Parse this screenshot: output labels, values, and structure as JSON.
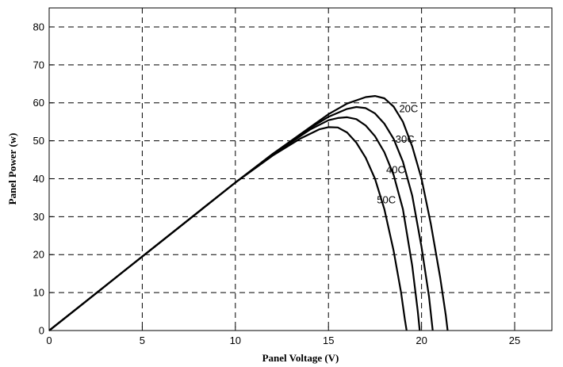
{
  "chart_data": {
    "type": "line",
    "title": "",
    "xlabel": "Panel Voltage (V)",
    "ylabel": "Panel Power (w)",
    "xlim": [
      0,
      27
    ],
    "ylim": [
      0,
      85
    ],
    "xticks": [
      0,
      5,
      10,
      15,
      20,
      25
    ],
    "yticks": [
      0,
      10,
      20,
      30,
      40,
      50,
      60,
      70,
      80
    ],
    "grid": true,
    "series": [
      {
        "name": "20C",
        "x": [
          0,
          2,
          4,
          6,
          8,
          10,
          12,
          14,
          15,
          16,
          17,
          17.5,
          18,
          18.5,
          19,
          19.5,
          20,
          20.5,
          21,
          21.3,
          21.4
        ],
        "y": [
          0,
          7.8,
          15.6,
          23.4,
          31.2,
          39.0,
          46.5,
          53.5,
          57.0,
          59.8,
          61.5,
          61.8,
          61.2,
          59.0,
          55.0,
          48.5,
          40.0,
          28.0,
          14.0,
          4.0,
          0
        ]
      },
      {
        "name": "30C",
        "x": [
          0,
          2,
          4,
          6,
          8,
          10,
          12,
          14,
          15,
          16,
          16.5,
          17,
          17.5,
          18,
          18.5,
          19,
          19.5,
          20,
          20.4,
          20.6
        ],
        "y": [
          0,
          7.8,
          15.6,
          23.4,
          31.2,
          39.0,
          46.5,
          53.3,
          56.3,
          58.4,
          58.9,
          58.6,
          57.2,
          54.5,
          50.5,
          44.5,
          35.5,
          22.0,
          9.0,
          0
        ]
      },
      {
        "name": "40C",
        "x": [
          0,
          2,
          4,
          6,
          8,
          10,
          12,
          14,
          15,
          15.5,
          16,
          16.5,
          17,
          17.5,
          18,
          18.5,
          19,
          19.5,
          19.8,
          19.9
        ],
        "y": [
          0,
          7.8,
          15.6,
          23.4,
          31.2,
          39.0,
          46.3,
          52.9,
          55.4,
          56.0,
          56.2,
          55.7,
          54.0,
          51.2,
          47.0,
          41.0,
          32.0,
          17.0,
          5.0,
          0
        ]
      },
      {
        "name": "50C",
        "x": [
          0,
          2,
          4,
          6,
          8,
          10,
          12,
          13.5,
          14.5,
          15,
          15.5,
          16,
          16.5,
          17,
          17.5,
          18,
          18.5,
          18.9,
          19.1,
          19.2
        ],
        "y": [
          0,
          7.8,
          15.6,
          23.4,
          31.2,
          39.0,
          46.1,
          50.6,
          53.0,
          53.6,
          53.5,
          52.2,
          49.5,
          45.5,
          40.0,
          32.0,
          21.0,
          10.0,
          3.0,
          0
        ]
      }
    ],
    "annotations": [
      {
        "text": "20C",
        "x": 18.8,
        "y": 57.5
      },
      {
        "text": "30C",
        "x": 18.6,
        "y": 49.5
      },
      {
        "text": "40C",
        "x": 18.1,
        "y": 41.5
      },
      {
        "text": "50C",
        "x": 17.6,
        "y": 33.5
      }
    ]
  }
}
